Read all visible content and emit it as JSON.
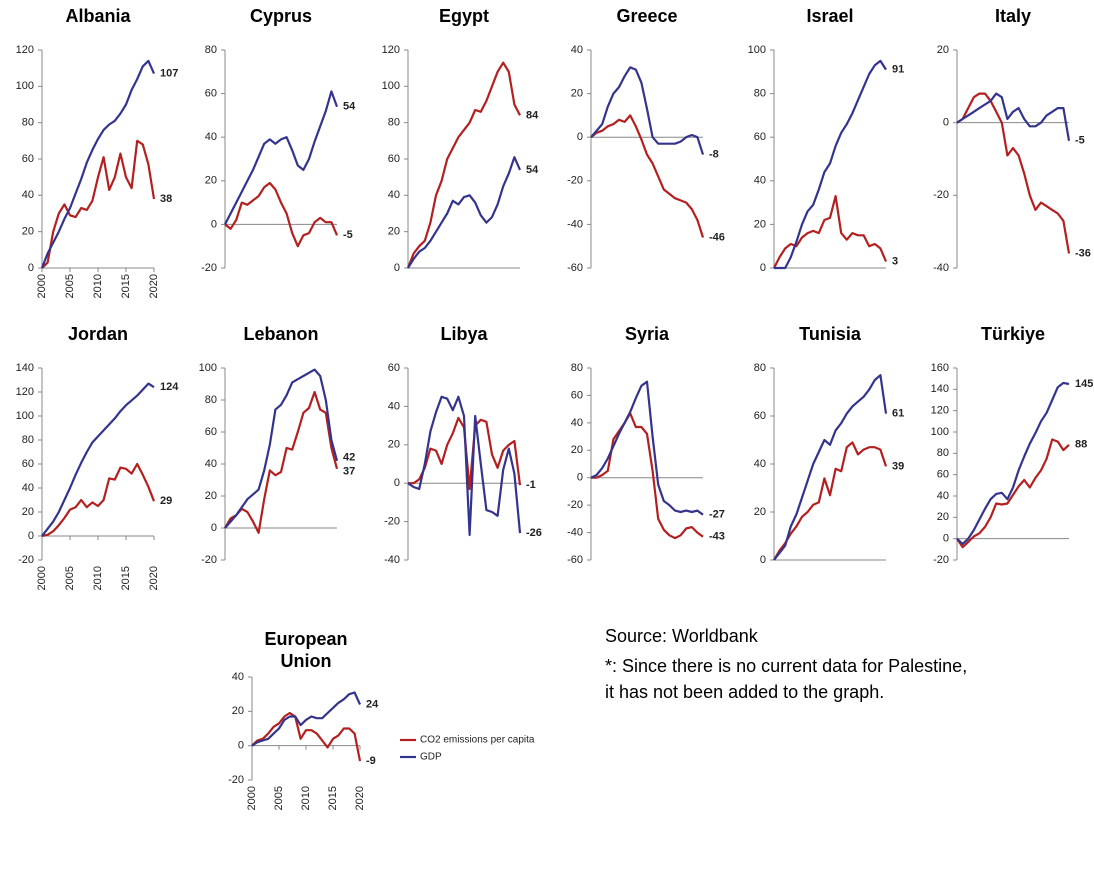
{
  "chart_data": [
    {
      "type": "line",
      "title": "Albania",
      "x": [
        2000,
        2001,
        2002,
        2003,
        2004,
        2005,
        2006,
        2007,
        2008,
        2009,
        2010,
        2011,
        2012,
        2013,
        2014,
        2015,
        2016,
        2017,
        2018,
        2019,
        2020
      ],
      "xlim": [
        2000,
        2020
      ],
      "xticks": [
        2000,
        2005,
        2010,
        2015,
        2020
      ],
      "ylim": [
        0,
        120
      ],
      "yticks": [
        0,
        20,
        40,
        60,
        80,
        100,
        120
      ],
      "series": [
        {
          "color": "#b41f1f",
          "values": [
            0,
            3,
            20,
            30,
            35,
            29,
            28,
            33,
            32,
            37,
            50,
            61,
            43,
            50,
            63,
            50,
            44,
            70,
            68,
            57,
            38
          ]
        },
        {
          "color": "#33348e",
          "values": [
            0,
            8,
            14,
            20,
            27,
            33,
            41,
            49,
            58,
            65,
            71,
            76,
            79,
            81,
            85,
            90,
            98,
            104,
            111,
            114,
            107
          ]
        }
      ]
    },
    {
      "type": "line",
      "title": "Cyprus",
      "x": [
        2000,
        2001,
        2002,
        2003,
        2004,
        2005,
        2006,
        2007,
        2008,
        2009,
        2010,
        2011,
        2012,
        2013,
        2014,
        2015,
        2016,
        2017,
        2018,
        2019,
        2020
      ],
      "xlim": [
        2000,
        2020
      ],
      "ylim": [
        -20,
        80
      ],
      "yticks": [
        -20,
        0,
        20,
        40,
        60,
        80
      ],
      "series": [
        {
          "color": "#b41f1f",
          "values": [
            0,
            -2,
            2,
            10,
            9,
            11,
            13,
            17,
            19,
            16,
            10,
            5,
            -4,
            -10,
            -5,
            -4,
            1,
            3,
            1,
            1,
            -5
          ]
        },
        {
          "color": "#33348e",
          "values": [
            0,
            5,
            10,
            15,
            20,
            25,
            31,
            37,
            39,
            37,
            39,
            40,
            34,
            27,
            25,
            30,
            38,
            45,
            52,
            61,
            54
          ]
        }
      ]
    },
    {
      "type": "line",
      "title": "Egypt",
      "x": [
        2000,
        2001,
        2002,
        2003,
        2004,
        2005,
        2006,
        2007,
        2008,
        2009,
        2010,
        2011,
        2012,
        2013,
        2014,
        2015,
        2016,
        2017,
        2018,
        2019,
        2020
      ],
      "xlim": [
        2000,
        2020
      ],
      "ylim": [
        0,
        120
      ],
      "yticks": [
        0,
        20,
        40,
        60,
        80,
        100,
        120
      ],
      "series": [
        {
          "color": "#b41f1f",
          "values": [
            0,
            8,
            12,
            15,
            25,
            40,
            48,
            60,
            66,
            72,
            76,
            80,
            87,
            86,
            92,
            100,
            108,
            113,
            108,
            90,
            84
          ]
        },
        {
          "color": "#33348e",
          "values": [
            0,
            5,
            9,
            11,
            15,
            20,
            25,
            30,
            37,
            35,
            39,
            40,
            36,
            29,
            25,
            28,
            35,
            45,
            52,
            61,
            54
          ]
        }
      ]
    },
    {
      "type": "line",
      "title": "Greece",
      "x": [
        2000,
        2001,
        2002,
        2003,
        2004,
        2005,
        2006,
        2007,
        2008,
        2009,
        2010,
        2011,
        2012,
        2013,
        2014,
        2015,
        2016,
        2017,
        2018,
        2019,
        2020
      ],
      "xlim": [
        2000,
        2020
      ],
      "ylim": [
        -60,
        40
      ],
      "yticks": [
        -60,
        -40,
        -20,
        0,
        20,
        40
      ],
      "series": [
        {
          "color": "#b41f1f",
          "values": [
            0,
            2,
            3,
            5,
            6,
            8,
            7,
            10,
            5,
            -1,
            -8,
            -12,
            -18,
            -24,
            -26,
            -28,
            -29,
            -30,
            -33,
            -38,
            -46
          ]
        },
        {
          "color": "#33348e",
          "values": [
            0,
            3,
            6,
            14,
            20,
            23,
            28,
            32,
            31,
            25,
            13,
            0,
            -3,
            -3,
            -3,
            -3,
            -2,
            0,
            1,
            0,
            -8
          ]
        }
      ]
    },
    {
      "type": "line",
      "title": "Israel",
      "x": [
        2000,
        2001,
        2002,
        2003,
        2004,
        2005,
        2006,
        2007,
        2008,
        2009,
        2010,
        2011,
        2012,
        2013,
        2014,
        2015,
        2016,
        2017,
        2018,
        2019,
        2020
      ],
      "xlim": [
        2000,
        2020
      ],
      "ylim": [
        0,
        100
      ],
      "yticks": [
        0,
        20,
        40,
        60,
        80,
        100
      ],
      "series": [
        {
          "color": "#b41f1f",
          "values": [
            0,
            5,
            9,
            11,
            10,
            14,
            16,
            17,
            16,
            22,
            23,
            33,
            16,
            13,
            16,
            15,
            15,
            10,
            11,
            9,
            3
          ]
        },
        {
          "color": "#33348e",
          "values": [
            0,
            0,
            0,
            5,
            12,
            20,
            26,
            29,
            36,
            44,
            48,
            56,
            62,
            66,
            71,
            77,
            83,
            89,
            93,
            95,
            91
          ]
        }
      ]
    },
    {
      "type": "line",
      "title": "Italy",
      "x": [
        2000,
        2001,
        2002,
        2003,
        2004,
        2005,
        2006,
        2007,
        2008,
        2009,
        2010,
        2011,
        2012,
        2013,
        2014,
        2015,
        2016,
        2017,
        2018,
        2019,
        2020
      ],
      "xlim": [
        2000,
        2020
      ],
      "ylim": [
        -40,
        20
      ],
      "yticks": [
        -40,
        -20,
        0,
        20
      ],
      "series": [
        {
          "color": "#b41f1f",
          "values": [
            0,
            1,
            4,
            7,
            8,
            8,
            6,
            3,
            0,
            -9,
            -7,
            -9,
            -14,
            -20,
            -24,
            -22,
            -23,
            -24,
            -25,
            -27,
            -36
          ]
        },
        {
          "color": "#33348e",
          "values": [
            0,
            1,
            2,
            3,
            4,
            5,
            6,
            8,
            7,
            1,
            3,
            4,
            1,
            -1,
            -1,
            0,
            2,
            3,
            4,
            4,
            -5
          ]
        }
      ]
    },
    {
      "type": "line",
      "title": "Jordan",
      "x": [
        2000,
        2001,
        2002,
        2003,
        2004,
        2005,
        2006,
        2007,
        2008,
        2009,
        2010,
        2011,
        2012,
        2013,
        2014,
        2015,
        2016,
        2017,
        2018,
        2019,
        2020
      ],
      "xlim": [
        2000,
        2020
      ],
      "xticks": [
        2000,
        2005,
        2010,
        2015,
        2020
      ],
      "ylim": [
        -20,
        140
      ],
      "yticks": [
        -20,
        0,
        20,
        40,
        60,
        80,
        100,
        120,
        140
      ],
      "series": [
        {
          "color": "#b41f1f",
          "values": [
            0,
            1,
            4,
            9,
            15,
            22,
            24,
            30,
            24,
            28,
            25,
            30,
            48,
            47,
            57,
            56,
            52,
            60,
            51,
            41,
            29
          ]
        },
        {
          "color": "#33348e",
          "values": [
            0,
            6,
            12,
            20,
            30,
            40,
            51,
            61,
            70,
            78,
            83,
            88,
            93,
            98,
            104,
            109,
            113,
            117,
            122,
            127,
            124
          ]
        }
      ]
    },
    {
      "type": "line",
      "title": "Lebanon",
      "x": [
        2000,
        2001,
        2002,
        2003,
        2004,
        2005,
        2006,
        2007,
        2008,
        2009,
        2010,
        2011,
        2012,
        2013,
        2014,
        2015,
        2016,
        2017,
        2018,
        2019,
        2020
      ],
      "xlim": [
        2000,
        2020
      ],
      "ylim": [
        -20,
        100
      ],
      "yticks": [
        -20,
        0,
        20,
        40,
        60,
        80,
        100
      ],
      "series": [
        {
          "color": "#b41f1f",
          "values": [
            0,
            6,
            8,
            12,
            10,
            4,
            -3,
            18,
            36,
            33,
            35,
            50,
            49,
            60,
            72,
            75,
            85,
            74,
            72,
            50,
            37
          ]
        },
        {
          "color": "#33348e",
          "values": [
            0,
            4,
            8,
            13,
            18,
            21,
            24,
            36,
            52,
            74,
            77,
            83,
            91,
            93,
            95,
            97,
            99,
            95,
            80,
            55,
            42
          ]
        }
      ]
    },
    {
      "type": "line",
      "title": "Libya",
      "x": [
        2000,
        2001,
        2002,
        2003,
        2004,
        2005,
        2006,
        2007,
        2008,
        2009,
        2010,
        2011,
        2012,
        2013,
        2014,
        2015,
        2016,
        2017,
        2018,
        2019,
        2020
      ],
      "xlim": [
        2000,
        2020
      ],
      "ylim": [
        -40,
        60
      ],
      "yticks": [
        -40,
        -20,
        0,
        20,
        40,
        60
      ],
      "series": [
        {
          "color": "#b41f1f",
          "values": [
            0,
            0,
            2,
            8,
            18,
            17,
            10,
            20,
            26,
            34,
            29,
            -3,
            30,
            33,
            32,
            15,
            8,
            17,
            20,
            22,
            -1
          ]
        },
        {
          "color": "#33348e",
          "values": [
            0,
            -2,
            -3,
            10,
            27,
            37,
            45,
            44,
            38,
            45,
            35,
            -27,
            35,
            10,
            -14,
            -15,
            -17,
            7,
            18,
            5,
            -26
          ]
        }
      ]
    },
    {
      "type": "line",
      "title": "Syria",
      "x": [
        2000,
        2001,
        2002,
        2003,
        2004,
        2005,
        2006,
        2007,
        2008,
        2009,
        2010,
        2011,
        2012,
        2013,
        2014,
        2015,
        2016,
        2017,
        2018,
        2019,
        2020
      ],
      "xlim": [
        2000,
        2020
      ],
      "ylim": [
        -60,
        80
      ],
      "yticks": [
        -60,
        -40,
        -20,
        0,
        20,
        40,
        60,
        80
      ],
      "series": [
        {
          "color": "#b41f1f",
          "values": [
            0,
            0,
            2,
            5,
            28,
            34,
            40,
            47,
            37,
            37,
            32,
            5,
            -30,
            -38,
            -42,
            -44,
            -42,
            -37,
            -36,
            -40,
            -43
          ]
        },
        {
          "color": "#33348e",
          "values": [
            0,
            2,
            7,
            14,
            23,
            32,
            40,
            48,
            58,
            67,
            70,
            30,
            -5,
            -17,
            -20,
            -24,
            -25,
            -24,
            -25,
            -24,
            -27
          ]
        }
      ]
    },
    {
      "type": "line",
      "title": "Tunisia",
      "x": [
        2000,
        2001,
        2002,
        2003,
        2004,
        2005,
        2006,
        2007,
        2008,
        2009,
        2010,
        2011,
        2012,
        2013,
        2014,
        2015,
        2016,
        2017,
        2018,
        2019,
        2020
      ],
      "xlim": [
        2000,
        2020
      ],
      "ylim": [
        0,
        80
      ],
      "yticks": [
        0,
        20,
        40,
        60,
        80
      ],
      "series": [
        {
          "color": "#b41f1f",
          "values": [
            0,
            4,
            7,
            11,
            14,
            18,
            20,
            23,
            24,
            34,
            27,
            38,
            37,
            47,
            49,
            44,
            46,
            47,
            47,
            46,
            39
          ]
        },
        {
          "color": "#33348e",
          "values": [
            0,
            3,
            6,
            14,
            19,
            26,
            33,
            40,
            45,
            50,
            48,
            54,
            57,
            61,
            64,
            66,
            68,
            71,
            75,
            77,
            61
          ]
        }
      ]
    },
    {
      "type": "line",
      "title": "Türkiye",
      "x": [
        2000,
        2001,
        2002,
        2003,
        2004,
        2005,
        2006,
        2007,
        2008,
        2009,
        2010,
        2011,
        2012,
        2013,
        2014,
        2015,
        2016,
        2017,
        2018,
        2019,
        2020
      ],
      "xlim": [
        2000,
        2020
      ],
      "ylim": [
        -20,
        160
      ],
      "yticks": [
        -20,
        0,
        20,
        40,
        60,
        80,
        100,
        120,
        140,
        160
      ],
      "series": [
        {
          "color": "#b41f1f",
          "values": [
            0,
            -8,
            -3,
            2,
            5,
            11,
            20,
            33,
            32,
            33,
            41,
            49,
            55,
            48,
            57,
            64,
            75,
            93,
            91,
            83,
            88
          ]
        },
        {
          "color": "#33348e",
          "values": [
            0,
            -5,
            0,
            8,
            18,
            28,
            37,
            42,
            43,
            37,
            48,
            64,
            77,
            89,
            99,
            110,
            118,
            130,
            142,
            146,
            145
          ]
        }
      ]
    },
    {
      "type": "line",
      "title": "European Union",
      "x": [
        2000,
        2001,
        2002,
        2003,
        2004,
        2005,
        2006,
        2007,
        2008,
        2009,
        2010,
        2011,
        2012,
        2013,
        2014,
        2015,
        2016,
        2017,
        2018,
        2019,
        2020
      ],
      "xlim": [
        2000,
        2020
      ],
      "xticks": [
        2000,
        2005,
        2010,
        2015,
        2020
      ],
      "ylim": [
        -20,
        40
      ],
      "yticks": [
        -20,
        0,
        20,
        40
      ],
      "series": [
        {
          "name": "CO2 emissions per capita",
          "color": "#b41f1f",
          "values": [
            0,
            3,
            4,
            7,
            11,
            13,
            17,
            19,
            17,
            4,
            9,
            9,
            7,
            3,
            -1,
            4,
            6,
            10,
            10,
            7,
            -9
          ]
        },
        {
          "name": "GDP",
          "color": "#33348e",
          "values": [
            0,
            2,
            3,
            4,
            7,
            10,
            15,
            17,
            17,
            12,
            15,
            17,
            16,
            16,
            19,
            22,
            25,
            27,
            30,
            31,
            24
          ]
        }
      ]
    }
  ],
  "source": "Source: Worldbank",
  "note": [
    "*: Since there is no current data for Palestine,",
    "it has not been added to the graph."
  ]
}
